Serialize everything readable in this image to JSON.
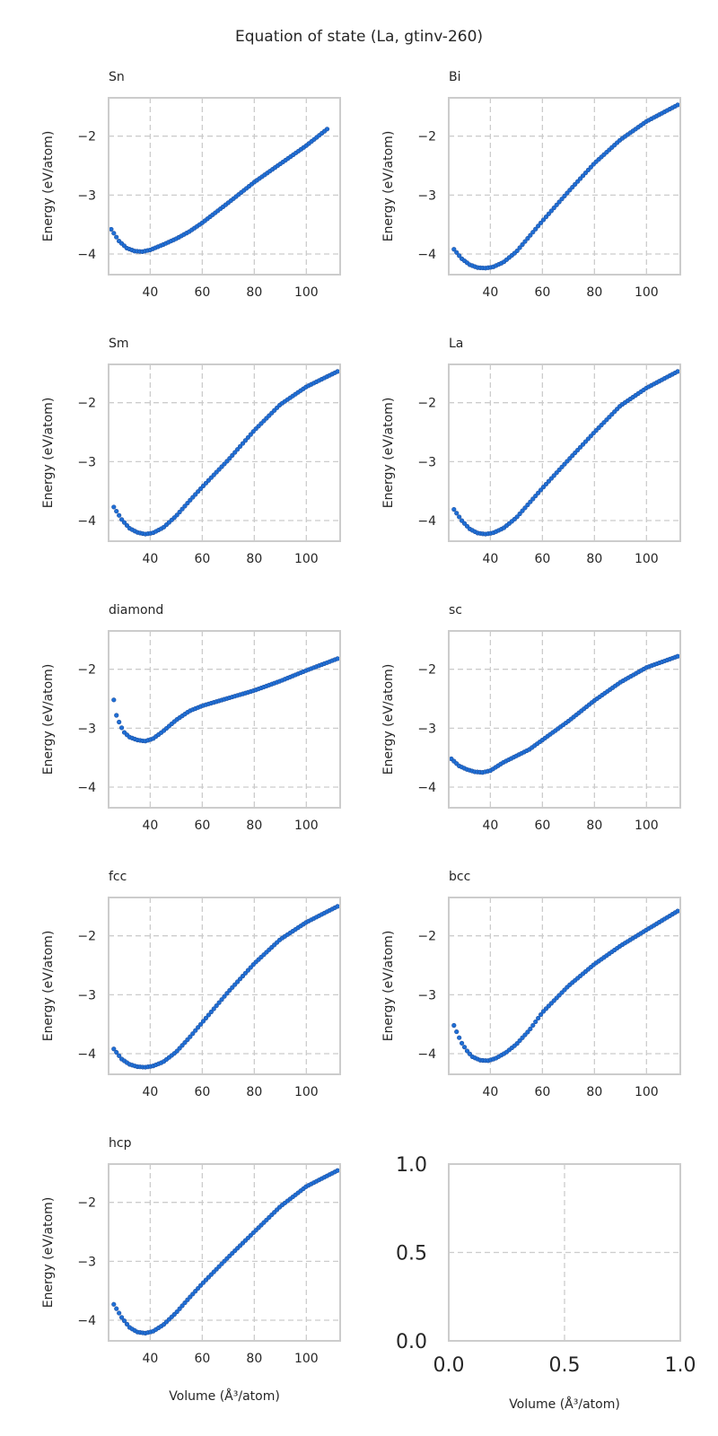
{
  "figure": {
    "title": "Equation of state (La, gtinv-260)"
  },
  "chart_data": [
    {
      "type": "scatter",
      "title": "Sn",
      "xlabel": "",
      "ylabel": "Energy (eV/atom)",
      "xlim": [
        24,
        113
      ],
      "ylim": [
        -4.35,
        -1.35
      ],
      "xticks": [
        40,
        60,
        80,
        100
      ],
      "xtick_labels": [
        "40",
        "60",
        "80",
        "100"
      ],
      "yticks": [
        -2,
        -3,
        -4
      ],
      "ytick_labels": [
        "−2",
        "−3",
        "−4"
      ],
      "grid": true,
      "series": [
        {
          "x_range": [
            25,
            108
          ],
          "n_points": 84,
          "points": [
            [
              25,
              -3.58
            ],
            [
              28,
              -3.78
            ],
            [
              31,
              -3.9
            ],
            [
              34,
              -3.95
            ],
            [
              37,
              -3.96
            ],
            [
              40,
              -3.93
            ],
            [
              45,
              -3.84
            ],
            [
              50,
              -3.74
            ],
            [
              55,
              -3.62
            ],
            [
              60,
              -3.47
            ],
            [
              70,
              -3.13
            ],
            [
              80,
              -2.78
            ],
            [
              90,
              -2.47
            ],
            [
              100,
              -2.16
            ],
            [
              108,
              -1.88
            ]
          ]
        }
      ]
    },
    {
      "type": "scatter",
      "title": "Bi",
      "xlabel": "",
      "ylabel": "Energy (eV/atom)",
      "xlim": [
        24,
        113
      ],
      "ylim": [
        -4.35,
        -1.35
      ],
      "xticks": [
        40,
        60,
        80,
        100
      ],
      "xtick_labels": [
        "40",
        "60",
        "80",
        "100"
      ],
      "yticks": [
        -2,
        -3,
        -4
      ],
      "ytick_labels": [
        "−2",
        "−3",
        "−4"
      ],
      "grid": true,
      "series": [
        {
          "x_range": [
            26,
            112
          ],
          "n_points": 86,
          "points": [
            [
              26,
              -3.92
            ],
            [
              29,
              -4.08
            ],
            [
              32,
              -4.18
            ],
            [
              35,
              -4.23
            ],
            [
              38,
              -4.24
            ],
            [
              41,
              -4.22
            ],
            [
              45,
              -4.14
            ],
            [
              50,
              -3.96
            ],
            [
              55,
              -3.7
            ],
            [
              60,
              -3.44
            ],
            [
              70,
              -2.94
            ],
            [
              80,
              -2.46
            ],
            [
              90,
              -2.06
            ],
            [
              100,
              -1.75
            ],
            [
              112,
              -1.47
            ]
          ]
        }
      ]
    },
    {
      "type": "scatter",
      "title": "Sm",
      "xlabel": "",
      "ylabel": "Energy (eV/atom)",
      "xlim": [
        24,
        113
      ],
      "ylim": [
        -4.35,
        -1.35
      ],
      "xticks": [
        40,
        60,
        80,
        100
      ],
      "xtick_labels": [
        "40",
        "60",
        "80",
        "100"
      ],
      "yticks": [
        -2,
        -3,
        -4
      ],
      "ytick_labels": [
        "−2",
        "−3",
        "−4"
      ],
      "grid": true,
      "series": [
        {
          "x_range": [
            26,
            112
          ],
          "n_points": 86,
          "points": [
            [
              26,
              -3.77
            ],
            [
              29,
              -3.98
            ],
            [
              32,
              -4.13
            ],
            [
              35,
              -4.2
            ],
            [
              38,
              -4.23
            ],
            [
              41,
              -4.21
            ],
            [
              45,
              -4.12
            ],
            [
              50,
              -3.92
            ],
            [
              55,
              -3.67
            ],
            [
              60,
              -3.43
            ],
            [
              70,
              -2.97
            ],
            [
              80,
              -2.47
            ],
            [
              90,
              -2.03
            ],
            [
              100,
              -1.73
            ],
            [
              112,
              -1.47
            ]
          ]
        }
      ]
    },
    {
      "type": "scatter",
      "title": "La",
      "xlabel": "",
      "ylabel": "Energy (eV/atom)",
      "xlim": [
        24,
        113
      ],
      "ylim": [
        -4.35,
        -1.35
      ],
      "xticks": [
        40,
        60,
        80,
        100
      ],
      "xtick_labels": [
        "40",
        "60",
        "80",
        "100"
      ],
      "yticks": [
        -2,
        -3,
        -4
      ],
      "ytick_labels": [
        "−2",
        "−3",
        "−4"
      ],
      "grid": true,
      "series": [
        {
          "x_range": [
            26,
            112
          ],
          "n_points": 86,
          "points": [
            [
              26,
              -3.81
            ],
            [
              29,
              -4.0
            ],
            [
              32,
              -4.14
            ],
            [
              35,
              -4.21
            ],
            [
              38,
              -4.23
            ],
            [
              41,
              -4.21
            ],
            [
              45,
              -4.13
            ],
            [
              50,
              -3.95
            ],
            [
              55,
              -3.7
            ],
            [
              60,
              -3.45
            ],
            [
              70,
              -2.97
            ],
            [
              80,
              -2.5
            ],
            [
              90,
              -2.05
            ],
            [
              100,
              -1.75
            ],
            [
              112,
              -1.47
            ]
          ]
        }
      ]
    },
    {
      "type": "scatter",
      "title": "diamond",
      "xlabel": "",
      "ylabel": "Energy (eV/atom)",
      "xlim": [
        24,
        113
      ],
      "ylim": [
        -4.35,
        -1.35
      ],
      "xticks": [
        40,
        60,
        80,
        100
      ],
      "xtick_labels": [
        "40",
        "60",
        "80",
        "100"
      ],
      "yticks": [
        -2,
        -3,
        -4
      ],
      "ytick_labels": [
        "−2",
        "−3",
        "−4"
      ],
      "grid": true,
      "series": [
        {
          "x_range": [
            26,
            112
          ],
          "n_points": 86,
          "points": [
            [
              26,
              -2.52
            ],
            [
              27,
              -2.78
            ],
            [
              28.5,
              -2.95
            ],
            [
              30,
              -3.07
            ],
            [
              32,
              -3.15
            ],
            [
              35,
              -3.2
            ],
            [
              38,
              -3.22
            ],
            [
              41,
              -3.18
            ],
            [
              45,
              -3.05
            ],
            [
              50,
              -2.86
            ],
            [
              55,
              -2.71
            ],
            [
              60,
              -2.62
            ],
            [
              70,
              -2.49
            ],
            [
              80,
              -2.36
            ],
            [
              90,
              -2.2
            ],
            [
              100,
              -2.02
            ],
            [
              112,
              -1.82
            ]
          ]
        }
      ]
    },
    {
      "type": "scatter",
      "title": "sc",
      "xlabel": "",
      "ylabel": "Energy (eV/atom)",
      "xlim": [
        24,
        113
      ],
      "ylim": [
        -4.35,
        -1.35
      ],
      "xticks": [
        40,
        60,
        80,
        100
      ],
      "xtick_labels": [
        "40",
        "60",
        "80",
        "100"
      ],
      "yticks": [
        -2,
        -3,
        -4
      ],
      "ytick_labels": [
        "−2",
        "−3",
        "−4"
      ],
      "grid": true,
      "series": [
        {
          "x_range": [
            25,
            112
          ],
          "n_points": 88,
          "points": [
            [
              25,
              -3.52
            ],
            [
              28,
              -3.64
            ],
            [
              31,
              -3.7
            ],
            [
              34,
              -3.74
            ],
            [
              37,
              -3.75
            ],
            [
              40,
              -3.72
            ],
            [
              45,
              -3.58
            ],
            [
              50,
              -3.47
            ],
            [
              55,
              -3.36
            ],
            [
              60,
              -3.2
            ],
            [
              70,
              -2.88
            ],
            [
              80,
              -2.53
            ],
            [
              90,
              -2.22
            ],
            [
              100,
              -1.97
            ],
            [
              112,
              -1.78
            ]
          ]
        }
      ]
    },
    {
      "type": "scatter",
      "title": "fcc",
      "xlabel": "",
      "ylabel": "Energy (eV/atom)",
      "xlim": [
        24,
        113
      ],
      "ylim": [
        -4.35,
        -1.35
      ],
      "xticks": [
        40,
        60,
        80,
        100
      ],
      "xtick_labels": [
        "40",
        "60",
        "80",
        "100"
      ],
      "yticks": [
        -2,
        -3,
        -4
      ],
      "ytick_labels": [
        "−2",
        "−3",
        "−4"
      ],
      "grid": true,
      "series": [
        {
          "x_range": [
            26,
            112
          ],
          "n_points": 86,
          "points": [
            [
              26,
              -3.92
            ],
            [
              29,
              -4.09
            ],
            [
              32,
              -4.18
            ],
            [
              35,
              -4.22
            ],
            [
              38,
              -4.23
            ],
            [
              41,
              -4.21
            ],
            [
              45,
              -4.14
            ],
            [
              50,
              -3.97
            ],
            [
              55,
              -3.73
            ],
            [
              60,
              -3.47
            ],
            [
              70,
              -2.95
            ],
            [
              80,
              -2.47
            ],
            [
              90,
              -2.06
            ],
            [
              100,
              -1.77
            ],
            [
              112,
              -1.5
            ]
          ]
        }
      ]
    },
    {
      "type": "scatter",
      "title": "bcc",
      "xlabel": "",
      "ylabel": "Energy (eV/atom)",
      "xlim": [
        24,
        113
      ],
      "ylim": [
        -4.35,
        -1.35
      ],
      "xticks": [
        40,
        60,
        80,
        100
      ],
      "xtick_labels": [
        "40",
        "60",
        "80",
        "100"
      ],
      "yticks": [
        -2,
        -3,
        -4
      ],
      "ytick_labels": [
        "−2",
        "−3",
        "−4"
      ],
      "grid": true,
      "series": [
        {
          "x_range": [
            26,
            112
          ],
          "n_points": 86,
          "points": [
            [
              26,
              -3.52
            ],
            [
              27.5,
              -3.68
            ],
            [
              29,
              -3.82
            ],
            [
              31,
              -3.95
            ],
            [
              33,
              -4.05
            ],
            [
              36,
              -4.11
            ],
            [
              39,
              -4.12
            ],
            [
              42,
              -4.08
            ],
            [
              46,
              -3.98
            ],
            [
              50,
              -3.84
            ],
            [
              55,
              -3.6
            ],
            [
              60,
              -3.3
            ],
            [
              70,
              -2.85
            ],
            [
              80,
              -2.48
            ],
            [
              90,
              -2.17
            ],
            [
              100,
              -1.9
            ],
            [
              112,
              -1.58
            ]
          ]
        }
      ]
    },
    {
      "type": "scatter",
      "title": "hcp",
      "xlabel": "Volume (Å³/atom)",
      "ylabel": "Energy (eV/atom)",
      "xlim": [
        24,
        113
      ],
      "ylim": [
        -4.35,
        -1.35
      ],
      "xticks": [
        40,
        60,
        80,
        100
      ],
      "xtick_labels": [
        "40",
        "60",
        "80",
        "100"
      ],
      "yticks": [
        -2,
        -3,
        -4
      ],
      "ytick_labels": [
        "−2",
        "−3",
        "−4"
      ],
      "grid": true,
      "series": [
        {
          "x_range": [
            26,
            112
          ],
          "n_points": 86,
          "points": [
            [
              26,
              -3.73
            ],
            [
              29,
              -3.95
            ],
            [
              32,
              -4.12
            ],
            [
              35,
              -4.2
            ],
            [
              38,
              -4.22
            ],
            [
              41,
              -4.19
            ],
            [
              45,
              -4.08
            ],
            [
              50,
              -3.87
            ],
            [
              55,
              -3.62
            ],
            [
              60,
              -3.38
            ],
            [
              70,
              -2.93
            ],
            [
              80,
              -2.5
            ],
            [
              90,
              -2.07
            ],
            [
              100,
              -1.73
            ],
            [
              112,
              -1.46
            ]
          ]
        }
      ]
    },
    {
      "type": "scatter",
      "title": "",
      "xlabel": "Volume (Å³/atom)",
      "ylabel": "",
      "xlim": [
        0,
        1
      ],
      "ylim": [
        0,
        1
      ],
      "xticks": [
        0,
        0.5,
        1
      ],
      "xtick_labels": [
        "0.0",
        "0.5",
        "1.0"
      ],
      "yticks": [
        1,
        0.5,
        0
      ],
      "ytick_labels": [
        "1.0",
        "0.5",
        "0.0"
      ],
      "grid": true,
      "big_ticks": true,
      "series": []
    }
  ]
}
